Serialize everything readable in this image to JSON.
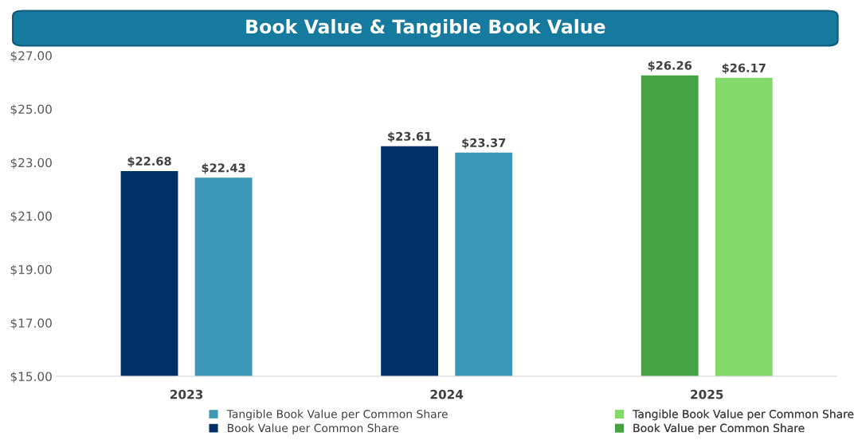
{
  "chart_data": {
    "type": "bar",
    "title": "Book Value & Tangible Book Value",
    "categories": [
      "2023",
      "2024",
      "2025"
    ],
    "series": [
      {
        "name": "Book Value per Common Share",
        "color": "#003066",
        "values": [
          22.68,
          23.61,
          null
        ],
        "value_labels": [
          "$22.68",
          "$23.61",
          null
        ]
      },
      {
        "name": "Tangible Book Value per Common Share",
        "color": "#3d97b8",
        "values": [
          22.43,
          23.37,
          null
        ],
        "value_labels": [
          "$22.43",
          "$23.37",
          null
        ]
      },
      {
        "name": "Book Value per Common Share",
        "color": "#46a343",
        "values": [
          null,
          null,
          26.26
        ],
        "value_labels": [
          null,
          null,
          "$26.26"
        ]
      },
      {
        "name": "Tangible Book Value per Common Share",
        "color": "#84d96a",
        "values": [
          null,
          null,
          26.17
        ],
        "value_labels": [
          null,
          null,
          "$26.17"
        ]
      }
    ],
    "ylim": [
      15,
      27
    ],
    "yticks": [
      {
        "value": 15,
        "label": "$15.00"
      },
      {
        "value": 17,
        "label": "$17.00"
      },
      {
        "value": 19,
        "label": "$19.00"
      },
      {
        "value": 21,
        "label": "$21.00"
      },
      {
        "value": 23,
        "label": "$23.00"
      },
      {
        "value": 25,
        "label": "$25.00"
      },
      {
        "value": 27,
        "label": "$27.00"
      }
    ],
    "grid": false,
    "legend": "bottom"
  }
}
